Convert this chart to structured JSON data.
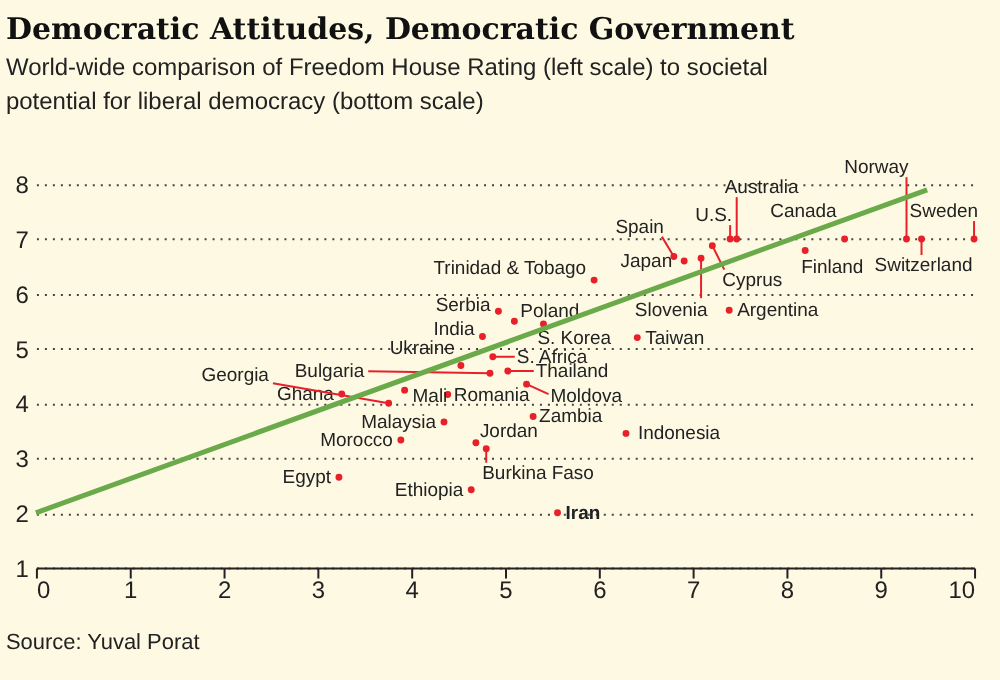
{
  "chart_data": {
    "type": "scatter",
    "title": "Democratic Attitudes, Democratic Government",
    "subtitle": "World-wide comparison of Freedom House Rating (left scale) to societal potential for liberal democracy (bottom scale)",
    "annotations": [
      "Source: Yuval Porat"
    ],
    "xlim": [
      0,
      10
    ],
    "ylim": [
      1,
      8
    ],
    "xticks": [
      0,
      1,
      2,
      3,
      4,
      5,
      6,
      7,
      8,
      9,
      10
    ],
    "yticks": [
      1,
      2,
      3,
      4,
      5,
      6,
      7,
      8
    ],
    "grid": "y",
    "series": [
      {
        "marker": "circle",
        "color": "#e8202a",
        "x": [
          3.23,
          4.64,
          3.89,
          4.35,
          3.26,
          3.76,
          3.93,
          4.84,
          4.53,
          4.39,
          4.76,
          4.93,
          4.69,
          4.8,
          5.95,
          5.1,
          5.41,
          4.87,
          5.03,
          5.23,
          5.3,
          6.29,
          5.56,
          6.41,
          7.39,
          7.09,
          6.91,
          6.8,
          7.21,
          7.4,
          7.47,
          8.2,
          8.62,
          9.28,
          9.44,
          10
        ],
        "values": [
          2.65,
          2.42,
          3.33,
          3.66,
          4.17,
          4.0,
          4.24,
          4.55,
          4.69,
          4.16,
          5.22,
          5.68,
          3.28,
          3.17,
          6.25,
          5.5,
          5.45,
          4.85,
          4.59,
          4.35,
          3.76,
          3.45,
          2.0,
          5.2,
          5.7,
          6.65,
          6.6,
          6.68,
          6.88,
          7.0,
          7.0,
          6.79,
          7.0,
          7.0,
          7.0,
          7.0
        ],
        "value_labels": [
          "Egypt",
          "Ethiopia",
          "Morocco",
          "Malaysia",
          "Ghana",
          "Georgia",
          "Mali",
          "Bulgaria",
          "Ukraine",
          "Romania",
          "India",
          "Serbia",
          "Jordan",
          "Burkina Faso",
          "Trinidad & Tobago",
          "Poland",
          "S. Korea",
          "S. Africa",
          "Thailand",
          "Moldova",
          "Zambia",
          "Indonesia",
          "Iran",
          "Taiwan",
          "Argentina",
          "Slovenia",
          "Japan",
          "Spain",
          "Cyprus",
          "U.S.",
          "Australia",
          "Finland",
          "Canada",
          "Norway",
          "Switzerland",
          "Sweden"
        ]
      },
      {
        "type": "line",
        "color": "#6aaa4a",
        "x": [
          0,
          9.5
        ],
        "values": [
          2,
          7.9
        ]
      }
    ]
  }
}
